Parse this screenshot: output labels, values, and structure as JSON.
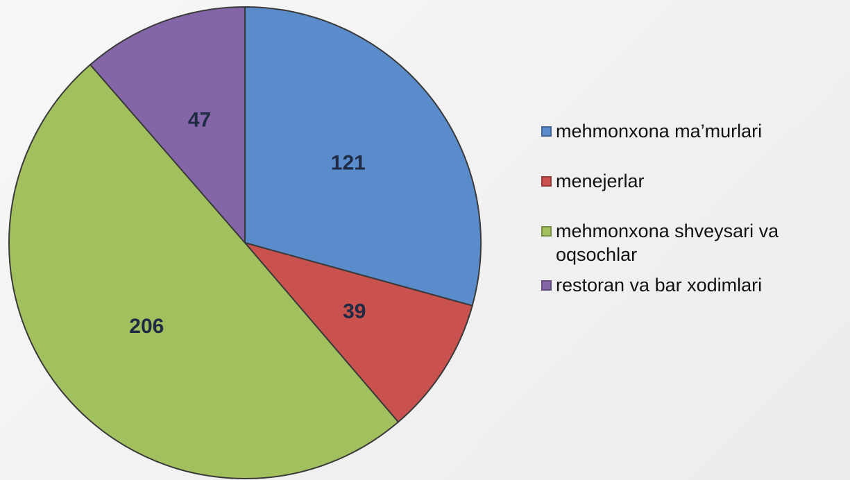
{
  "chart_data": {
    "type": "pie",
    "categories": [
      "mehmonxona ma’murlari",
      "menejerlar",
      "mehmonxona shveysari va oqsochlar",
      "restoran va bar xodimlari"
    ],
    "values": [
      121,
      39,
      206,
      47
    ],
    "colors": [
      "#5a8bcb",
      "#c9524f",
      "#a2c05e",
      "#8466a8"
    ],
    "legend": "right"
  }
}
